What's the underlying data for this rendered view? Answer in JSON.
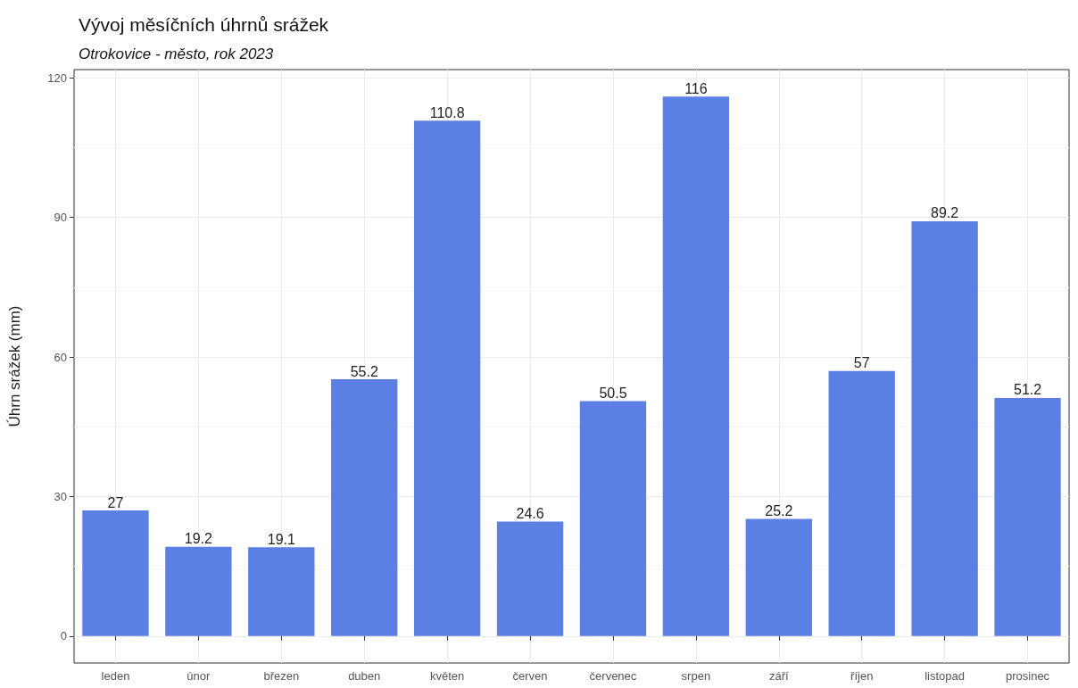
{
  "chart_data": {
    "type": "bar",
    "title": "Vývoj měsíčních úhrnů srážek",
    "subtitle": "Otrokovice - město, rok 2023",
    "ylabel": "Úhrn srážek (mm)",
    "categories": [
      "leden",
      "únor",
      "březen",
      "duben",
      "květen",
      "červen",
      "červenec",
      "srpen",
      "září",
      "říjen",
      "listopad",
      "prosinec"
    ],
    "values": [
      27,
      19.2,
      19.1,
      55.2,
      110.8,
      24.6,
      50.5,
      116,
      25.2,
      57,
      89.2,
      51.2
    ],
    "color": "#5b7fe3",
    "ylim": [
      -5.8,
      121.8
    ],
    "yticks": [
      0,
      30,
      60,
      90,
      120
    ],
    "grid": true,
    "data_labels": true
  }
}
